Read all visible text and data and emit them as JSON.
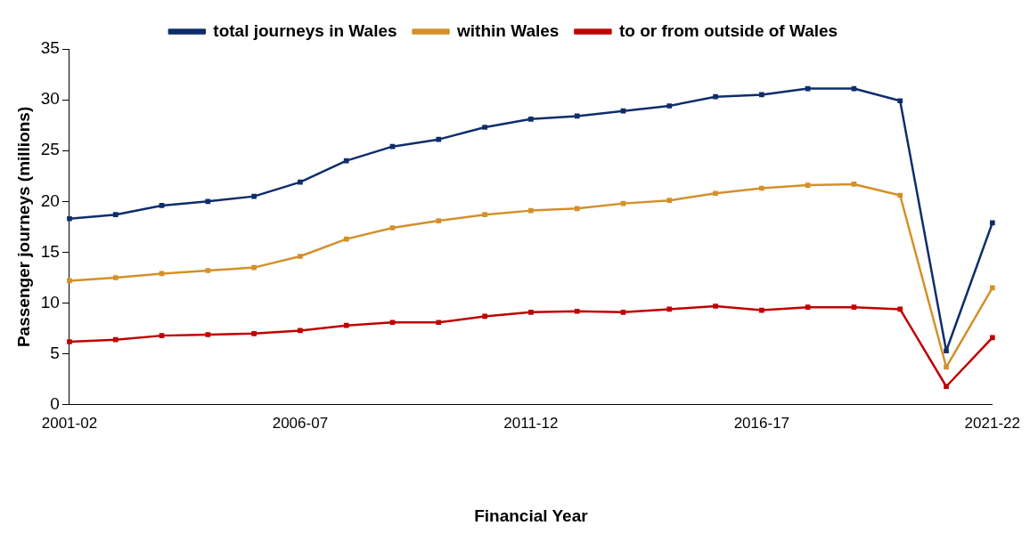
{
  "chart_data": {
    "type": "line",
    "xlabel": "Financial Year",
    "ylabel": "Passenger journeys (millions)",
    "categories": [
      "2001-02",
      null,
      null,
      null,
      null,
      "2006-07",
      null,
      null,
      null,
      null,
      "2011-12",
      null,
      null,
      null,
      null,
      "2016-17",
      null,
      null,
      null,
      null,
      "2021-22"
    ],
    "series": [
      {
        "name": "total journeys in Wales",
        "color": "#0e2d6b",
        "values": [
          18.3,
          18.7,
          19.6,
          20.0,
          20.5,
          21.9,
          24.0,
          25.4,
          26.1,
          27.3,
          28.1,
          28.4,
          28.9,
          29.4,
          30.3,
          30.5,
          31.1,
          31.1,
          29.9,
          5.3,
          17.9
        ]
      },
      {
        "name": "within Wales",
        "color": "#d4902a",
        "values": [
          12.2,
          12.5,
          12.9,
          13.2,
          13.5,
          14.6,
          16.3,
          17.4,
          18.1,
          18.7,
          19.1,
          19.3,
          19.8,
          20.1,
          20.8,
          21.3,
          21.6,
          21.7,
          20.6,
          3.7,
          11.5
        ]
      },
      {
        "name": "to or from outside of Wales",
        "color": "#c00000",
        "values": [
          6.2,
          6.4,
          6.8,
          6.9,
          7.0,
          7.3,
          7.8,
          8.1,
          8.1,
          8.7,
          9.1,
          9.2,
          9.1,
          9.4,
          9.7,
          9.3,
          9.6,
          9.6,
          9.4,
          1.8,
          6.6
        ]
      }
    ],
    "ylim": [
      0,
      35
    ],
    "yticks": [
      0,
      5,
      10,
      15,
      20,
      25,
      30,
      35
    ],
    "grid": false,
    "legend": "top",
    "marker": "square",
    "line_style": "solid"
  }
}
